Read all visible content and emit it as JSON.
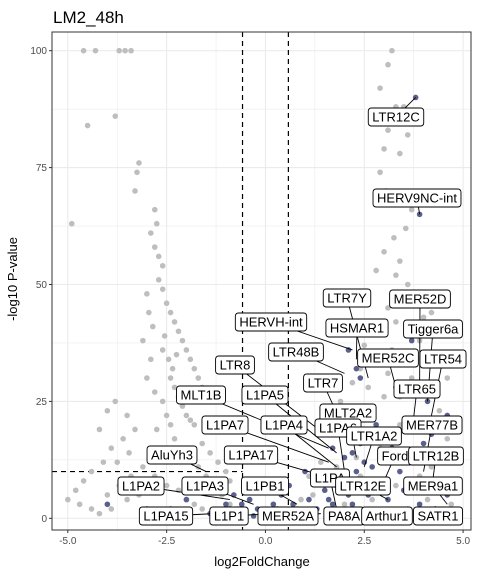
{
  "chart_data": {
    "type": "scatter",
    "title": "LM2_48h",
    "xlabel": "log2FoldChange",
    "ylabel": "-log10 P-value",
    "xlim": [
      -5.4,
      5.2
    ],
    "ylim": [
      -2.5,
      104
    ],
    "x_ticks": [
      -5.0,
      -2.5,
      0.0,
      2.5,
      5.0
    ],
    "x_tick_labels": [
      "-5.0",
      "-2.5",
      "0.0",
      "2.5",
      "5.0"
    ],
    "y_ticks": [
      0,
      25,
      50,
      75,
      100
    ],
    "y_tick_labels": [
      "0",
      "25",
      "50",
      "75",
      "100"
    ],
    "grid": true,
    "legend": "none",
    "colors": {
      "background_points": "#bebebe",
      "highlight_points": "#5b5f8c",
      "label_border": "#000000",
      "grid": "#ebebeb",
      "panel_border": "#333333"
    },
    "thresholds": {
      "vertical_lines_x": [
        -0.58,
        0.58
      ],
      "horizontal_line_y": 10,
      "horizontal_line_x_range": [
        -5.4,
        -0.58
      ]
    },
    "series": [
      {
        "role": "background",
        "points": [
          [
            -4.6,
            100
          ],
          [
            -4.3,
            100
          ],
          [
            -3.7,
            100
          ],
          [
            -3.55,
            100
          ],
          [
            -3.4,
            100
          ],
          [
            -3.8,
            86
          ],
          [
            -4.5,
            84
          ],
          [
            -3.2,
            76
          ],
          [
            -3.25,
            74
          ],
          [
            -3.3,
            70
          ],
          [
            -2.8,
            66
          ],
          [
            -2.75,
            63
          ],
          [
            -4.9,
            63
          ],
          [
            -2.9,
            61
          ],
          [
            -2.8,
            58
          ],
          [
            -2.7,
            56
          ],
          [
            -2.6,
            54
          ],
          [
            -2.7,
            51
          ],
          [
            -2.6,
            49
          ],
          [
            -2.5,
            46
          ],
          [
            -2.4,
            44
          ],
          [
            -2.3,
            42
          ],
          [
            -2.2,
            40
          ],
          [
            -2.1,
            38
          ],
          [
            -2.0,
            36
          ],
          [
            -1.9,
            34
          ],
          [
            -1.8,
            32
          ],
          [
            -1.7,
            30
          ],
          [
            -1.6,
            28
          ],
          [
            -1.5,
            26
          ],
          [
            -2.4,
            30
          ],
          [
            -2.3,
            28
          ],
          [
            -2.2,
            26
          ],
          [
            -2.1,
            24
          ],
          [
            -2.0,
            22
          ],
          [
            -1.9,
            21
          ],
          [
            -1.8,
            20
          ],
          [
            -3.0,
            30
          ],
          [
            -2.8,
            27
          ],
          [
            -2.6,
            25
          ],
          [
            -2.5,
            22
          ],
          [
            -2.4,
            20
          ],
          [
            -3.5,
            22
          ],
          [
            -3.8,
            25
          ],
          [
            -3.3,
            19
          ],
          [
            -3.6,
            17
          ],
          [
            -3.9,
            15
          ],
          [
            -4.1,
            12
          ],
          [
            -4.4,
            10
          ],
          [
            -4.6,
            8
          ],
          [
            -4.8,
            6
          ],
          [
            -5.0,
            4
          ],
          [
            -4.7,
            3
          ],
          [
            -4.4,
            2
          ],
          [
            -4.0,
            5
          ],
          [
            -3.7,
            7
          ],
          [
            -3.4,
            9
          ],
          [
            -3.1,
            11
          ],
          [
            -2.9,
            13
          ],
          [
            -2.6,
            15
          ],
          [
            -2.3,
            17
          ],
          [
            -2.1,
            15
          ],
          [
            -1.9,
            13
          ],
          [
            -1.7,
            11
          ],
          [
            -1.5,
            9
          ],
          [
            -1.3,
            7
          ],
          [
            -1.1,
            5
          ],
          [
            -0.9,
            3
          ],
          [
            -0.7,
            2
          ],
          [
            -1.2,
            12
          ],
          [
            -1.4,
            14
          ],
          [
            -1.6,
            16
          ],
          [
            -0.9,
            8
          ],
          [
            -1.0,
            10
          ],
          [
            -2.8,
            9
          ],
          [
            -3.2,
            5
          ],
          [
            -3.5,
            4
          ],
          [
            -3.9,
            2
          ],
          [
            -4.2,
            1
          ],
          [
            -2.5,
            7
          ],
          [
            -2.2,
            6
          ],
          [
            -2.0,
            4
          ],
          [
            -1.8,
            3
          ],
          [
            -1.6,
            2
          ],
          [
            -1.4,
            1
          ],
          [
            -2.9,
            34
          ],
          [
            -3.1,
            38
          ],
          [
            -2.95,
            44
          ],
          [
            -3.0,
            48
          ],
          [
            -2.85,
            41
          ],
          [
            -2.6,
            36
          ],
          [
            -2.55,
            39
          ],
          [
            -2.45,
            34
          ],
          [
            -2.35,
            32
          ],
          [
            -2.25,
            35
          ],
          [
            -4.0,
            23
          ],
          [
            -4.2,
            19
          ],
          [
            -3.45,
            14
          ],
          [
            -3.75,
            12
          ],
          [
            -2.75,
            19
          ],
          [
            3.2,
            100
          ],
          [
            3.1,
            97
          ],
          [
            2.9,
            92
          ],
          [
            3.5,
            88
          ],
          [
            3.3,
            88
          ],
          [
            3.1,
            83
          ],
          [
            3.6,
            82
          ],
          [
            3.0,
            79
          ],
          [
            3.4,
            78
          ],
          [
            2.9,
            74
          ],
          [
            3.05,
            70
          ],
          [
            3.15,
            68
          ],
          [
            3.7,
            66
          ],
          [
            3.55,
            62
          ],
          [
            3.25,
            60
          ],
          [
            3.0,
            57
          ],
          [
            3.4,
            55
          ],
          [
            3.3,
            52
          ],
          [
            2.8,
            53
          ],
          [
            3.6,
            50
          ],
          [
            3.8,
            47
          ],
          [
            3.1,
            45
          ],
          [
            4.2,
            44
          ],
          [
            3.3,
            42
          ],
          [
            2.7,
            40
          ],
          [
            3.9,
            38
          ],
          [
            2.5,
            37
          ],
          [
            3.5,
            35
          ],
          [
            4.3,
            33
          ],
          [
            2.4,
            32
          ],
          [
            3.7,
            30
          ],
          [
            2.2,
            29
          ],
          [
            4.1,
            27
          ],
          [
            3.0,
            26
          ],
          [
            1.9,
            25
          ],
          [
            4.4,
            23
          ],
          [
            2.6,
            22
          ],
          [
            3.4,
            20
          ],
          [
            1.6,
            18
          ],
          [
            4.6,
            17
          ],
          [
            2.9,
            15
          ],
          [
            3.8,
            13
          ],
          [
            1.4,
            12
          ],
          [
            4.2,
            11
          ],
          [
            2.4,
            9
          ],
          [
            3.3,
            7
          ],
          [
            4.5,
            6
          ],
          [
            1.2,
            5
          ],
          [
            2.0,
            3
          ],
          [
            3.6,
            2
          ],
          [
            4.8,
            1
          ],
          [
            0.9,
            4
          ],
          [
            1.5,
            7
          ],
          [
            2.1,
            6
          ],
          [
            2.7,
            4
          ],
          [
            0.8,
            2
          ],
          [
            1.1,
            9
          ],
          [
            1.8,
            11
          ],
          [
            2.3,
            13
          ],
          [
            3.9,
            9
          ],
          [
            4.1,
            4
          ],
          [
            4.7,
            3
          ],
          [
            3.1,
            31
          ],
          [
            2.8,
            34
          ],
          [
            3.2,
            36
          ],
          [
            3.6,
            40
          ],
          [
            4.0,
            43
          ],
          [
            4.3,
            46
          ],
          [
            2.6,
            28
          ],
          [
            3.4,
            26
          ],
          [
            4.6,
            30
          ],
          [
            4.0,
            19
          ],
          [
            3.2,
            16
          ],
          [
            2.5,
            18
          ],
          [
            4.9,
            12
          ]
        ]
      },
      {
        "role": "highlight",
        "points": [
          [
            -1.2,
            0.5
          ],
          [
            -0.9,
            2
          ],
          [
            -0.7,
            1
          ],
          [
            -0.6,
            3
          ],
          [
            -0.3,
            0.5
          ],
          [
            -0.1,
            1.5
          ],
          [
            0.1,
            0.8
          ],
          [
            0.3,
            2
          ],
          [
            0.5,
            1
          ],
          [
            0.7,
            3
          ],
          [
            0.9,
            1.5
          ],
          [
            1.1,
            4
          ],
          [
            1.3,
            2
          ],
          [
            1.5,
            6
          ],
          [
            1.7,
            3
          ],
          [
            1.9,
            8
          ],
          [
            2.1,
            5
          ],
          [
            2.3,
            10
          ],
          [
            2.5,
            12
          ],
          [
            2.2,
            14
          ],
          [
            2.4,
            16
          ],
          [
            2.6,
            18
          ],
          [
            2.8,
            20
          ],
          [
            2.0,
            9
          ],
          [
            1.6,
            4
          ],
          [
            1.8,
            7
          ],
          [
            2.7,
            11
          ],
          [
            3.0,
            13
          ],
          [
            3.2,
            15
          ],
          [
            2.9,
            8
          ],
          [
            3.4,
            10
          ],
          [
            3.6,
            12
          ],
          [
            3.8,
            14
          ],
          [
            4.0,
            16
          ],
          [
            4.2,
            18
          ],
          [
            4.4,
            20
          ],
          [
            3.1,
            4
          ],
          [
            3.5,
            6
          ],
          [
            3.9,
            3
          ],
          [
            4.3,
            2
          ],
          [
            4.6,
            5
          ],
          [
            4.8,
            1
          ],
          [
            -2.0,
            4
          ],
          [
            -2.4,
            2
          ],
          [
            -1.6,
            6
          ],
          [
            -1.4,
            1
          ],
          [
            -3.5,
            6
          ],
          [
            -4.0,
            3
          ],
          [
            -3.0,
            2
          ],
          [
            -2.8,
            8
          ],
          [
            2.2,
            3
          ],
          [
            2.6,
            5
          ],
          [
            3.8,
            90
          ],
          [
            3.9,
            65
          ],
          [
            2.1,
            36
          ],
          [
            2.3,
            32
          ],
          [
            2.4,
            30
          ],
          [
            1.8,
            20
          ],
          [
            1.9,
            18
          ],
          [
            1.7,
            15
          ],
          [
            2.0,
            13
          ],
          [
            1.4,
            8
          ],
          [
            1.0,
            10
          ],
          [
            0.6,
            7
          ],
          [
            0.4,
            5
          ],
          [
            0.2,
            3
          ],
          [
            -0.2,
            2
          ],
          [
            -0.4,
            4
          ],
          [
            -0.8,
            5
          ],
          [
            -1.0,
            3
          ],
          [
            4.1,
            25
          ],
          [
            4.6,
            22
          ],
          [
            3.7,
            38
          ],
          [
            3.3,
            28
          ]
        ]
      }
    ],
    "annotations": [
      {
        "label": "LTR12C",
        "x": 3.8,
        "y": 90
      },
      {
        "label": "HERV9NC-int",
        "x": 3.9,
        "y": 65
      },
      {
        "label": "LTR7Y",
        "x": 2.6,
        "y": 30
      },
      {
        "label": "MER52D",
        "x": 3.9,
        "y": 28
      },
      {
        "label": "HERVH-int",
        "x": 2.2,
        "y": 36
      },
      {
        "label": "HSMAR1",
        "x": 2.3,
        "y": 34
      },
      {
        "label": "Tigger6a",
        "x": 4.1,
        "y": 25
      },
      {
        "label": "LTR48B",
        "x": 2.0,
        "y": 31
      },
      {
        "label": "MER52C",
        "x": 3.3,
        "y": 28
      },
      {
        "label": "LTR54",
        "x": 4.2,
        "y": 22
      },
      {
        "label": "LTR8",
        "x": 1.5,
        "y": 18
      },
      {
        "label": "LTR7",
        "x": 2.1,
        "y": 17
      },
      {
        "label": "LTR65",
        "x": 3.7,
        "y": 18
      },
      {
        "label": "MLT1B",
        "x": 1.6,
        "y": 15
      },
      {
        "label": "L1PA5",
        "x": 1.8,
        "y": 14
      },
      {
        "label": "MLT2A2",
        "x": 2.3,
        "y": 13
      },
      {
        "label": "L1PA7",
        "x": 1.6,
        "y": 12
      },
      {
        "label": "L1PA4",
        "x": 1.8,
        "y": 11
      },
      {
        "label": "L1PA6",
        "x": 2.0,
        "y": 10
      },
      {
        "label": "LTR1A2",
        "x": 2.5,
        "y": 11
      },
      {
        "label": "MER77B",
        "x": 4.0,
        "y": 10
      },
      {
        "label": "AluYh3",
        "x": -1.5,
        "y": 10
      },
      {
        "label": "L1PA17",
        "x": 1.5,
        "y": 9
      },
      {
        "label": "Ford",
        "x": 3.0,
        "y": 8
      },
      {
        "label": "LTR12B",
        "x": 4.2,
        "y": 6
      },
      {
        "label": "L1PA2",
        "x": -0.9,
        "y": 4
      },
      {
        "label": "L1PA3",
        "x": -0.3,
        "y": 3
      },
      {
        "label": "L1PB1",
        "x": 0.8,
        "y": 3
      },
      {
        "label": "L1PA",
        "x": 1.8,
        "y": 2
      },
      {
        "label": "LTR12E",
        "x": 3.1,
        "y": 4
      },
      {
        "label": "MER9a1",
        "x": 4.6,
        "y": 3
      },
      {
        "label": "L1PA15",
        "x": -1.3,
        "y": 1
      },
      {
        "label": "L1P1",
        "x": 0.2,
        "y": 1
      },
      {
        "label": "MER52A",
        "x": 1.4,
        "y": 1
      },
      {
        "label": "PA8A",
        "x": 2.1,
        "y": 1
      },
      {
        "label": "Arthur1",
        "x": 3.4,
        "y": 1
      },
      {
        "label": "SATR1",
        "x": 4.7,
        "y": 1
      }
    ]
  }
}
